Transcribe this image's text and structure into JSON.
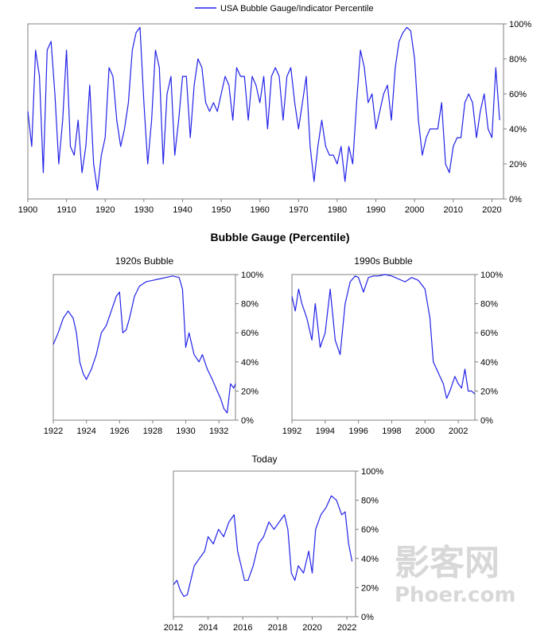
{
  "main_title": "Bubble Gauge (Percentile)",
  "watermark": {
    "line1": "影客网",
    "line2": "Phoer.com"
  },
  "colors": {
    "line": "#2222e8",
    "axis": "#808080",
    "watermark": "#d8d8d8"
  },
  "chart_data": [
    {
      "id": "full",
      "type": "line",
      "title": "",
      "legend": {
        "label": "USA Bubble Gauge/Indicator Percentile",
        "position": "top"
      },
      "xlim": [
        1900,
        2023
      ],
      "x_ticks": [
        "1900",
        "1910",
        "1920",
        "1930",
        "1940",
        "1950",
        "1960",
        "1970",
        "1980",
        "1990",
        "2000",
        "2010",
        "2020"
      ],
      "ylim": [
        0,
        100
      ],
      "y_ticks": [
        "0%",
        "20%",
        "40%",
        "60%",
        "80%",
        "100%"
      ],
      "series": [
        {
          "x": [
            1900,
            1901,
            1902,
            1903,
            1904,
            1905,
            1906,
            1907,
            1908,
            1909,
            1910,
            1911,
            1912,
            1913,
            1914,
            1915,
            1916,
            1917,
            1918,
            1919,
            1920,
            1921,
            1922,
            1923,
            1924,
            1925,
            1926,
            1927,
            1928,
            1929,
            1930,
            1931,
            1932,
            1933,
            1934,
            1935,
            1936,
            1937,
            1938,
            1939,
            1940,
            1941,
            1942,
            1943,
            1944,
            1945,
            1946,
            1947,
            1948,
            1949,
            1950,
            1951,
            1952,
            1953,
            1954,
            1955,
            1956,
            1957,
            1958,
            1959,
            1960,
            1961,
            1962,
            1963,
            1964,
            1965,
            1966,
            1967,
            1968,
            1969,
            1970,
            1971,
            1972,
            1973,
            1974,
            1975,
            1976,
            1977,
            1978,
            1979,
            1980,
            1981,
            1982,
            1983,
            1984,
            1985,
            1986,
            1987,
            1988,
            1989,
            1990,
            1991,
            1992,
            1993,
            1994,
            1995,
            1996,
            1997,
            1998,
            1999,
            2000,
            2001,
            2002,
            2003,
            2004,
            2005,
            2006,
            2007,
            2008,
            2009,
            2010,
            2011,
            2012,
            2013,
            2014,
            2015,
            2016,
            2017,
            2018,
            2019,
            2020,
            2021,
            2022
          ],
          "y": [
            50,
            30,
            85,
            70,
            15,
            85,
            90,
            60,
            20,
            45,
            85,
            30,
            25,
            45,
            15,
            30,
            65,
            20,
            5,
            25,
            35,
            75,
            70,
            45,
            30,
            40,
            55,
            85,
            95,
            98,
            55,
            20,
            45,
            85,
            75,
            20,
            60,
            70,
            25,
            45,
            70,
            70,
            35,
            65,
            80,
            75,
            55,
            50,
            55,
            50,
            60,
            70,
            65,
            45,
            75,
            70,
            70,
            45,
            70,
            65,
            55,
            70,
            40,
            70,
            75,
            70,
            45,
            70,
            75,
            55,
            40,
            55,
            70,
            30,
            10,
            30,
            45,
            30,
            25,
            25,
            20,
            30,
            10,
            30,
            20,
            55,
            85,
            75,
            55,
            60,
            40,
            50,
            60,
            65,
            45,
            75,
            90,
            95,
            98,
            96,
            80,
            45,
            25,
            35,
            40,
            40,
            40,
            55,
            20,
            15,
            30,
            35,
            35,
            55,
            60,
            55,
            35,
            50,
            60,
            40,
            35,
            75,
            45
          ]
        }
      ]
    },
    {
      "id": "1920s",
      "type": "line",
      "title": "1920s Bubble",
      "xlim": [
        1922,
        1933
      ],
      "x_ticks": [
        "1922",
        "1924",
        "1926",
        "1928",
        "1930",
        "1932"
      ],
      "ylim": [
        0,
        100
      ],
      "y_ticks": [
        "0%",
        "20%",
        "40%",
        "60%",
        "80%",
        "100%"
      ],
      "series": [
        {
          "x": [
            1922.0,
            1922.3,
            1922.6,
            1922.9,
            1923.2,
            1923.4,
            1923.6,
            1923.8,
            1924.0,
            1924.3,
            1924.6,
            1924.9,
            1925.2,
            1925.5,
            1925.8,
            1926.0,
            1926.2,
            1926.4,
            1926.6,
            1926.9,
            1927.2,
            1927.6,
            1928.0,
            1928.4,
            1928.8,
            1929.2,
            1929.6,
            1929.8,
            1930.0,
            1930.2,
            1930.5,
            1930.8,
            1931.0,
            1931.3,
            1931.6,
            1931.9,
            1932.1,
            1932.3,
            1932.5,
            1932.7,
            1932.9,
            1933.0
          ],
          "y": [
            52,
            60,
            70,
            75,
            70,
            60,
            40,
            32,
            28,
            35,
            45,
            60,
            65,
            75,
            85,
            88,
            60,
            62,
            70,
            85,
            92,
            95,
            96,
            97,
            98,
            99,
            98,
            90,
            50,
            60,
            45,
            40,
            45,
            35,
            28,
            20,
            15,
            8,
            5,
            25,
            22,
            25
          ]
        }
      ]
    },
    {
      "id": "1990s",
      "type": "line",
      "title": "1990s Bubble",
      "xlim": [
        1992,
        2003
      ],
      "x_ticks": [
        "1992",
        "1994",
        "1996",
        "1998",
        "2000",
        "2002"
      ],
      "ylim": [
        0,
        100
      ],
      "y_ticks": [
        "0%",
        "20%",
        "40%",
        "60%",
        "80%",
        "100%"
      ],
      "series": [
        {
          "x": [
            1992.0,
            1992.2,
            1992.4,
            1992.6,
            1992.9,
            1993.2,
            1993.4,
            1993.7,
            1994.0,
            1994.3,
            1994.6,
            1994.9,
            1995.2,
            1995.5,
            1995.8,
            1996.0,
            1996.3,
            1996.6,
            1996.9,
            1997.2,
            1997.6,
            1998.0,
            1998.4,
            1998.8,
            1999.2,
            1999.6,
            2000.0,
            2000.3,
            2000.5,
            2000.7,
            2000.9,
            2001.1,
            2001.3,
            2001.5,
            2001.8,
            2002.0,
            2002.2,
            2002.4,
            2002.6,
            2002.8,
            2003.0
          ],
          "y": [
            85,
            75,
            90,
            80,
            70,
            55,
            80,
            50,
            60,
            90,
            55,
            45,
            80,
            95,
            99,
            98,
            88,
            98,
            99,
            99,
            100,
            99,
            97,
            95,
            98,
            96,
            90,
            70,
            40,
            35,
            30,
            25,
            15,
            20,
            30,
            25,
            22,
            35,
            20,
            20,
            18
          ]
        }
      ]
    },
    {
      "id": "today",
      "type": "line",
      "title": "Today",
      "xlim": [
        2012,
        2022.5
      ],
      "x_ticks": [
        "2012",
        "2014",
        "2016",
        "2018",
        "2020",
        "2022"
      ],
      "ylim": [
        0,
        100
      ],
      "y_ticks": [
        "0%",
        "20%",
        "40%",
        "60%",
        "80%",
        "100%"
      ],
      "series": [
        {
          "x": [
            2012.0,
            2012.2,
            2012.4,
            2012.6,
            2012.8,
            2013.0,
            2013.2,
            2013.5,
            2013.8,
            2014.0,
            2014.3,
            2014.6,
            2014.9,
            2015.2,
            2015.5,
            2015.7,
            2015.9,
            2016.1,
            2016.3,
            2016.6,
            2016.9,
            2017.2,
            2017.5,
            2017.8,
            2018.1,
            2018.4,
            2018.6,
            2018.8,
            2019.0,
            2019.2,
            2019.5,
            2019.8,
            2020.0,
            2020.2,
            2020.5,
            2020.8,
            2021.1,
            2021.4,
            2021.7,
            2021.9,
            2022.1,
            2022.3
          ],
          "y": [
            22,
            25,
            18,
            14,
            15,
            25,
            35,
            40,
            45,
            55,
            50,
            60,
            55,
            65,
            70,
            45,
            35,
            25,
            25,
            35,
            50,
            55,
            65,
            60,
            65,
            70,
            60,
            30,
            25,
            35,
            30,
            45,
            30,
            60,
            70,
            75,
            83,
            80,
            70,
            72,
            50,
            38
          ]
        }
      ]
    }
  ]
}
